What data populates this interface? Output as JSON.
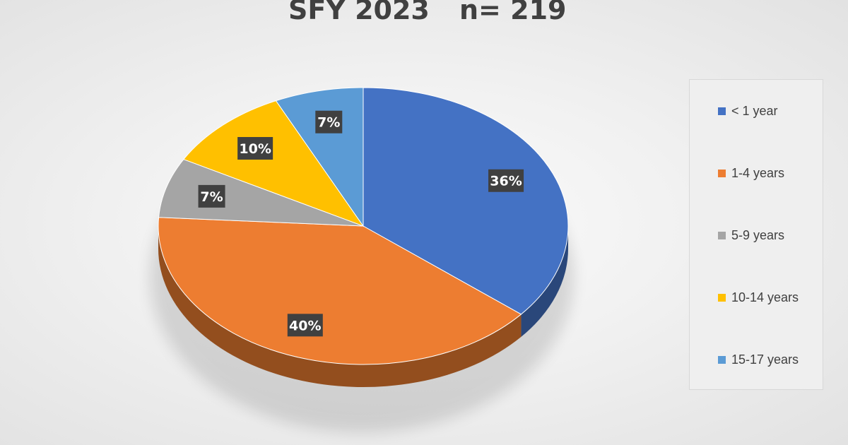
{
  "chart_data": {
    "type": "pie",
    "title": "SFY 2023",
    "subtitle": "n= 219",
    "categories": [
      "< 1 year",
      "1-4 years",
      "5-9 years",
      "10-14 years",
      "15-17 years"
    ],
    "values": [
      36,
      40,
      7,
      10,
      7
    ],
    "labels": [
      "36%",
      "40%",
      "7%",
      "10%",
      "7%"
    ],
    "colors": [
      "#4472c4",
      "#ed7d31",
      "#a5a5a5",
      "#ffc000",
      "#5b9bd5"
    ],
    "legend_position": "right"
  }
}
